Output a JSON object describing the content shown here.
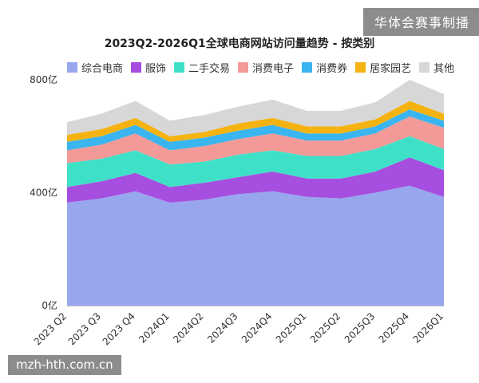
{
  "watermarks": {
    "top": "华体会赛事制播",
    "bottom": "mzh-hth.com.cn"
  },
  "chart_data": {
    "type": "area",
    "stacked": true,
    "title": "2023Q2-2026Q1全球电商网站访问量趋势 - 按类别",
    "xlabel": "",
    "ylabel": "",
    "ylim": [
      0,
      800
    ],
    "yticks": [
      "0亿",
      "400亿",
      "800亿"
    ],
    "ytick_values": [
      0,
      400,
      800
    ],
    "grid": false,
    "legend_position": "top",
    "categories": [
      "2023 Q2",
      "2023 Q3",
      "2023 Q4",
      "2024Q1",
      "2024Q2",
      "2024Q3",
      "2024Q4",
      "2025Q1",
      "2025Q2",
      "2025Q3",
      "2025Q4",
      "2026Q1"
    ],
    "series": [
      {
        "name": "综合电商",
        "color": "#98a6ee",
        "values": [
          365,
          380,
          405,
          365,
          375,
          395,
          405,
          385,
          380,
          400,
          425,
          385
        ]
      },
      {
        "name": "服饰",
        "color": "#a64ee0",
        "values": [
          55,
          60,
          65,
          55,
          60,
          60,
          70,
          65,
          70,
          75,
          100,
          95
        ]
      },
      {
        "name": "二手交易",
        "color": "#3fe0c8",
        "values": [
          85,
          80,
          80,
          80,
          75,
          80,
          75,
          80,
          80,
          80,
          75,
          75
        ]
      },
      {
        "name": "消费电子",
        "color": "#f39a98",
        "values": [
          45,
          50,
          60,
          50,
          55,
          55,
          60,
          55,
          55,
          55,
          70,
          75
        ]
      },
      {
        "name": "消费券",
        "color": "#3ab5ef",
        "values": [
          30,
          30,
          30,
          30,
          30,
          30,
          30,
          25,
          25,
          25,
          25,
          25
        ]
      },
      {
        "name": "居家园艺",
        "color": "#f5b311",
        "values": [
          25,
          25,
          25,
          20,
          20,
          25,
          25,
          25,
          25,
          25,
          30,
          25
        ]
      },
      {
        "name": "其他",
        "color": "#d7d7d7",
        "values": [
          45,
          55,
          60,
          55,
          60,
          60,
          65,
          55,
          55,
          60,
          75,
          70
        ]
      }
    ]
  }
}
